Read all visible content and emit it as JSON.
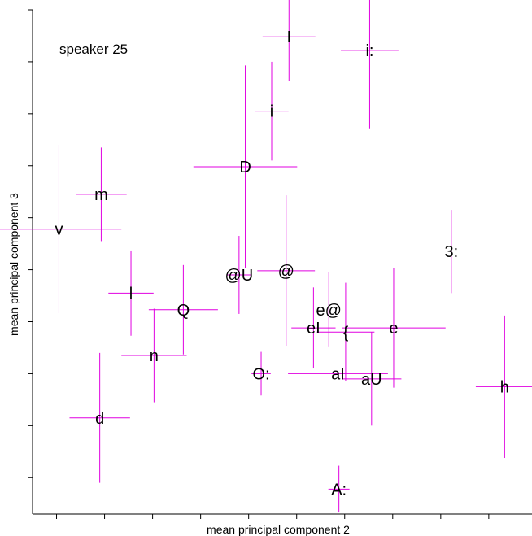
{
  "chart_data": {
    "type": "scatter",
    "title": "",
    "annotation": "speaker 25",
    "xlabel": "mean principal component 2",
    "ylabel": "mean principal component 3",
    "xlim": [
      0,
      10.4
    ],
    "ylim": [
      0,
      9.7
    ],
    "grid": false,
    "error_color": "#e000e0",
    "x_ticks": [
      0.5,
      1.5,
      2.5,
      3.5,
      4.5,
      5.5,
      6.5,
      7.5,
      8.5,
      9.5
    ],
    "y_ticks": [
      0.7,
      1.7,
      2.7,
      3.7,
      4.7,
      5.7,
      6.7,
      7.7,
      8.7,
      9.7
    ],
    "points": [
      {
        "label": "I",
        "x": 5.34,
        "y": 9.18,
        "xerr": 0.55,
        "yerr": 0.85
      },
      {
        "label": "i:",
        "x": 7.02,
        "y": 8.92,
        "xerr": 0.6,
        "yerr": 1.5
      },
      {
        "label": "i",
        "x": 4.98,
        "y": 7.75,
        "xerr": 0.35,
        "yerr": 0.95
      },
      {
        "label": "D",
        "x": 4.43,
        "y": 6.68,
        "xerr": 1.08,
        "yerr": 1.95
      },
      {
        "label": "m",
        "x": 1.43,
        "y": 6.15,
        "xerr": 0.53,
        "yerr": 0.9
      },
      {
        "label": "v",
        "x": 0.55,
        "y": 5.48,
        "xerr": 1.3,
        "yerr": 1.62
      },
      {
        "label": "3:",
        "x": 8.72,
        "y": 5.05,
        "xerr": 0.0,
        "yerr": 0.8
      },
      {
        "label": "@U",
        "x": 4.3,
        "y": 4.6,
        "xerr": 0.25,
        "yerr": 0.75
      },
      {
        "label": "@",
        "x": 5.28,
        "y": 4.68,
        "xerr": 0.6,
        "yerr": 1.45
      },
      {
        "label": "l",
        "x": 2.05,
        "y": 4.25,
        "xerr": 0.47,
        "yerr": 0.82
      },
      {
        "label": "Q",
        "x": 3.14,
        "y": 3.93,
        "xerr": 0.72,
        "yerr": 0.86
      },
      {
        "label": "e@",
        "x": 6.17,
        "y": 3.93,
        "xerr": 0.0,
        "yerr": 0.72
      },
      {
        "label": "eI",
        "x": 5.85,
        "y": 3.58,
        "xerr": 0.46,
        "yerr": 0.78
      },
      {
        "label": "{",
        "x": 6.52,
        "y": 3.5,
        "xerr": 0.6,
        "yerr": 0.95
      },
      {
        "label": "e",
        "x": 7.52,
        "y": 3.58,
        "xerr": 1.08,
        "yerr": 1.15
      },
      {
        "label": "n",
        "x": 2.53,
        "y": 3.05,
        "xerr": 0.68,
        "yerr": 0.9
      },
      {
        "label": "O:",
        "x": 4.76,
        "y": 2.7,
        "xerr": 0.2,
        "yerr": 0.42
      },
      {
        "label": "aI",
        "x": 6.36,
        "y": 2.7,
        "xerr": 1.04,
        "yerr": 0.95
      },
      {
        "label": "aU",
        "x": 7.06,
        "y": 2.6,
        "xerr": 0.62,
        "yerr": 0.9
      },
      {
        "label": "h",
        "x": 9.83,
        "y": 2.45,
        "xerr": 0.6,
        "yerr": 1.37
      },
      {
        "label": "d",
        "x": 1.4,
        "y": 1.85,
        "xerr": 0.63,
        "yerr": 1.25
      },
      {
        "label": "A:",
        "x": 6.38,
        "y": 0.48,
        "xerr": 0.22,
        "yerr": 0.45
      }
    ]
  }
}
